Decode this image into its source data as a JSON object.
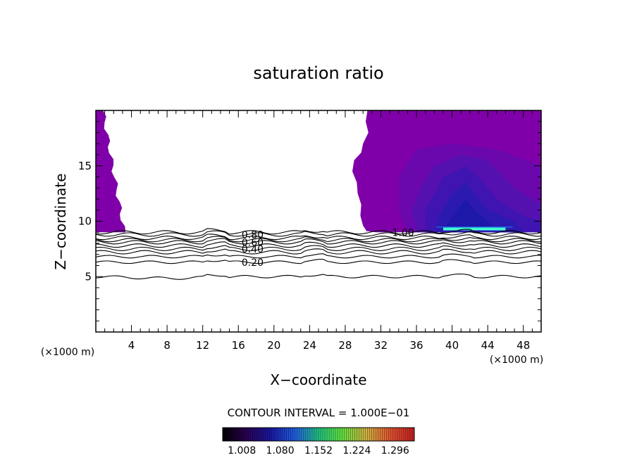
{
  "chart_data": {
    "type": "heatmap",
    "title": "saturation ratio",
    "xlabel": "X−coordinate",
    "ylabel": "Z−coordinate",
    "x_unit_left": "(×1000 m)",
    "x_unit_right": "(×1000 m)",
    "xlim": [
      0,
      50
    ],
    "ylim": [
      0,
      20
    ],
    "x_ticks": [
      4,
      8,
      12,
      16,
      20,
      24,
      28,
      32,
      36,
      40,
      44,
      48
    ],
    "y_ticks": [
      5,
      10,
      15
    ],
    "contour_interval_text": "CONTOUR INTERVAL = 1.000E−01",
    "contours": [
      {
        "label": "0.20",
        "z": 6.3
      },
      {
        "label": "0.40",
        "z": 7.5
      },
      {
        "label": "0.60",
        "z": 8.1
      },
      {
        "label": "0.80",
        "z": 8.8
      },
      {
        "label": "1.00",
        "z": 9.0
      }
    ],
    "extra_contours": [
      5.0,
      6.8,
      7.2,
      7.8,
      8.3,
      8.5
    ],
    "colorbar_ticks": [
      "1.008",
      "1.080",
      "1.152",
      "1.224",
      "1.296"
    ],
    "colorbar_range": [
      0.972,
      1.332
    ],
    "shaded_regions": [
      {
        "x": [
          0,
          3.2
        ],
        "z_min": 9.0,
        "z_max": 20,
        "value": 1.02
      },
      {
        "x": [
          30,
          50
        ],
        "z_min": 9.0,
        "z_max": 20,
        "value": 1.02
      }
    ],
    "peak": {
      "x": [
        39,
        46
      ],
      "z": 9.3,
      "value": 1.15
    },
    "colors": {
      "axes": "#000000",
      "fill_low": "#7f00a8",
      "fill_mid": "#3a1cb0",
      "fill_core": "#1d18a8",
      "peak": "#40ffd0"
    }
  }
}
